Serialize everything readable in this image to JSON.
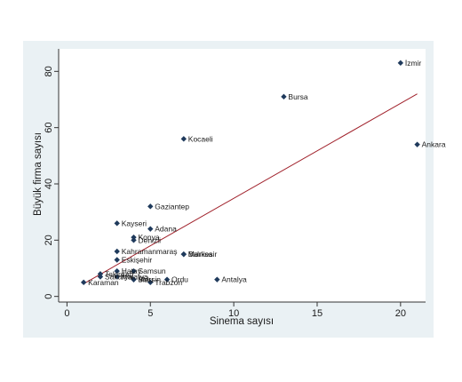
{
  "chart_data": {
    "type": "scatter",
    "title": "",
    "xlabel": "Sinema sayısı",
    "ylabel": "Büyük firma sayısı",
    "xlim": [
      -0.5,
      21.5
    ],
    "ylim": [
      -2,
      88
    ],
    "xticks": [
      0,
      5,
      10,
      15,
      20
    ],
    "yticks": [
      0,
      20,
      40,
      60,
      80
    ],
    "grid": false,
    "background": {
      "outer": "#eaf1f4",
      "plot": "#ffffff"
    },
    "colors": {
      "marker": "#1f3a5c",
      "fit_line": "#a0202a",
      "axis": "#333333",
      "text": "#1a1a1a"
    },
    "points": [
      {
        "label": "İzmir",
        "x": 20,
        "y": 83
      },
      {
        "label": "Bursa",
        "x": 13,
        "y": 71
      },
      {
        "label": "Kocaeli",
        "x": 7,
        "y": 56
      },
      {
        "label": "Ankara",
        "x": 21,
        "y": 54
      },
      {
        "label": "Gaziantep",
        "x": 5,
        "y": 32
      },
      {
        "label": "Kayseri",
        "x": 3,
        "y": 26
      },
      {
        "label": "Adana",
        "x": 5,
        "y": 24
      },
      {
        "label": "Konya",
        "x": 4,
        "y": 21
      },
      {
        "label": "Denizli",
        "x": 4,
        "y": 20
      },
      {
        "label": "Kahramanmaraş",
        "x": 3,
        "y": 16
      },
      {
        "label": "Manisa",
        "x": 7,
        "y": 15
      },
      {
        "label": "Balıkesir",
        "x": 7,
        "y": 15
      },
      {
        "label": "Eskişehir",
        "x": 3,
        "y": 13
      },
      {
        "label": "Hatay",
        "x": 3,
        "y": 9
      },
      {
        "label": "Samsun",
        "x": 4,
        "y": 9
      },
      {
        "label": "Tekirdağ",
        "x": 2,
        "y": 8
      },
      {
        "label": "Sakarya",
        "x": 2,
        "y": 7
      },
      {
        "label": "Malatya",
        "x": 3,
        "y": 7
      },
      {
        "label": "Mersin",
        "x": 4,
        "y": 6
      },
      {
        "label": "Bolu",
        "x": 4,
        "y": 6
      },
      {
        "label": "Ordu",
        "x": 6,
        "y": 6
      },
      {
        "label": "Trabzon",
        "x": 5,
        "y": 5
      },
      {
        "label": "Antalya",
        "x": 9,
        "y": 6
      },
      {
        "label": "Karaman",
        "x": 1,
        "y": 5
      }
    ],
    "fit_line": {
      "x": [
        1,
        21
      ],
      "y": [
        4.5,
        72
      ]
    }
  }
}
